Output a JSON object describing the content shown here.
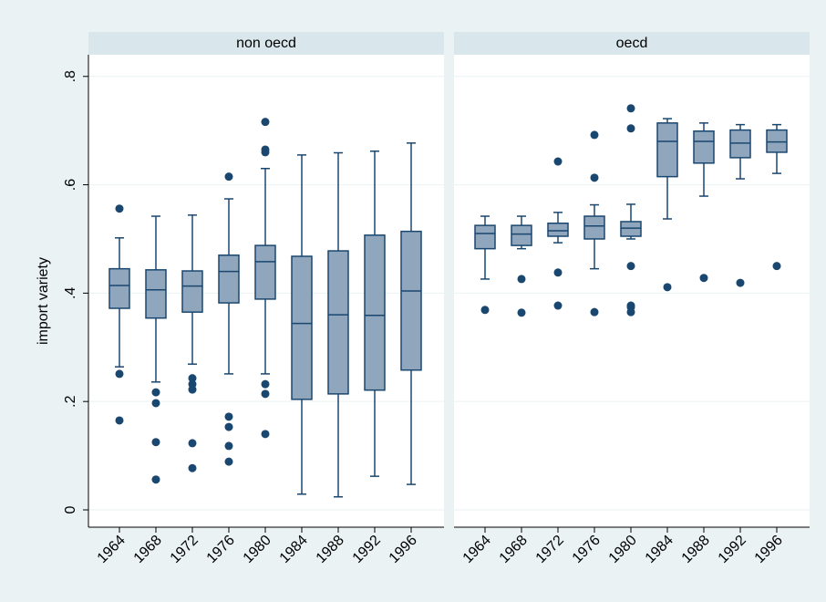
{
  "chart_data": {
    "type": "box",
    "ylabel": "import variety",
    "ylim": [
      -0.032,
      0.84
    ],
    "yticks": [
      0,
      {
        "value": 0.2,
        "label": ".2"
      },
      {
        "value": 0.4,
        "label": ".4"
      },
      {
        "value": 0.6,
        "label": ".6"
      },
      {
        "value": 0.8,
        "label": ".8"
      }
    ],
    "grid": true,
    "color": "#8fa6bc",
    "edge_color": "#1a476f",
    "categories": [
      "1964",
      "1968",
      "1972",
      "1976",
      "1980",
      "1984",
      "1988",
      "1992",
      "1996"
    ],
    "panels": [
      {
        "title": "non oecd",
        "boxes": [
          {
            "whislo": 0.264,
            "q1": 0.372,
            "med": 0.414,
            "q3": 0.445,
            "whishi": 0.502,
            "outliers": [
              0.556,
              0.251,
              0.165
            ]
          },
          {
            "whislo": 0.236,
            "q1": 0.354,
            "med": 0.406,
            "q3": 0.443,
            "whishi": 0.542,
            "outliers": [
              0.217,
              0.197,
              0.125,
              0.056
            ]
          },
          {
            "whislo": 0.269,
            "q1": 0.365,
            "med": 0.413,
            "q3": 0.441,
            "whishi": 0.544,
            "outliers": [
              0.243,
              0.232,
              0.222,
              0.123,
              0.077
            ]
          },
          {
            "whislo": 0.251,
            "q1": 0.382,
            "med": 0.44,
            "q3": 0.47,
            "whishi": 0.574,
            "outliers": [
              0.615,
              0.172,
              0.153,
              0.118,
              0.089
            ]
          },
          {
            "whislo": 0.251,
            "q1": 0.389,
            "med": 0.458,
            "q3": 0.488,
            "whishi": 0.63,
            "outliers": [
              0.716,
              0.665,
              0.66,
              0.232,
              0.214,
              0.14
            ]
          },
          {
            "whislo": 0.029,
            "q1": 0.204,
            "med": 0.344,
            "q3": 0.468,
            "whishi": 0.655,
            "outliers": []
          },
          {
            "whislo": 0.024,
            "q1": 0.214,
            "med": 0.36,
            "q3": 0.478,
            "whishi": 0.659,
            "outliers": []
          },
          {
            "whislo": 0.062,
            "q1": 0.221,
            "med": 0.359,
            "q3": 0.507,
            "whishi": 0.662,
            "outliers": []
          },
          {
            "whislo": 0.047,
            "q1": 0.258,
            "med": 0.404,
            "q3": 0.514,
            "whishi": 0.677,
            "outliers": []
          }
        ]
      },
      {
        "title": "oecd",
        "boxes": [
          {
            "whislo": 0.426,
            "q1": 0.482,
            "med": 0.51,
            "q3": 0.525,
            "whishi": 0.542,
            "outliers": [
              0.369
            ]
          },
          {
            "whislo": 0.482,
            "q1": 0.488,
            "med": 0.509,
            "q3": 0.525,
            "whishi": 0.542,
            "outliers": [
              0.426,
              0.364
            ]
          },
          {
            "whislo": 0.493,
            "q1": 0.505,
            "med": 0.515,
            "q3": 0.529,
            "whishi": 0.549,
            "outliers": [
              0.643,
              0.438,
              0.377
            ]
          },
          {
            "whislo": 0.445,
            "q1": 0.5,
            "med": 0.524,
            "q3": 0.542,
            "whishi": 0.563,
            "outliers": [
              0.692,
              0.613,
              0.365
            ]
          },
          {
            "whislo": 0.5,
            "q1": 0.505,
            "med": 0.52,
            "q3": 0.532,
            "whishi": 0.564,
            "outliers": [
              0.741,
              0.704,
              0.45,
              0.377,
              0.374,
              0.365
            ]
          },
          {
            "whislo": 0.537,
            "q1": 0.615,
            "med": 0.68,
            "q3": 0.714,
            "whishi": 0.722,
            "outliers": [
              0.411
            ]
          },
          {
            "whislo": 0.579,
            "q1": 0.64,
            "med": 0.68,
            "q3": 0.699,
            "whishi": 0.714,
            "outliers": [
              0.428
            ]
          },
          {
            "whislo": 0.611,
            "q1": 0.65,
            "med": 0.677,
            "q3": 0.701,
            "whishi": 0.711,
            "outliers": [
              0.419
            ]
          },
          {
            "whislo": 0.621,
            "q1": 0.66,
            "med": 0.679,
            "q3": 0.701,
            "whishi": 0.711,
            "outliers": [
              0.45
            ]
          }
        ]
      }
    ]
  }
}
